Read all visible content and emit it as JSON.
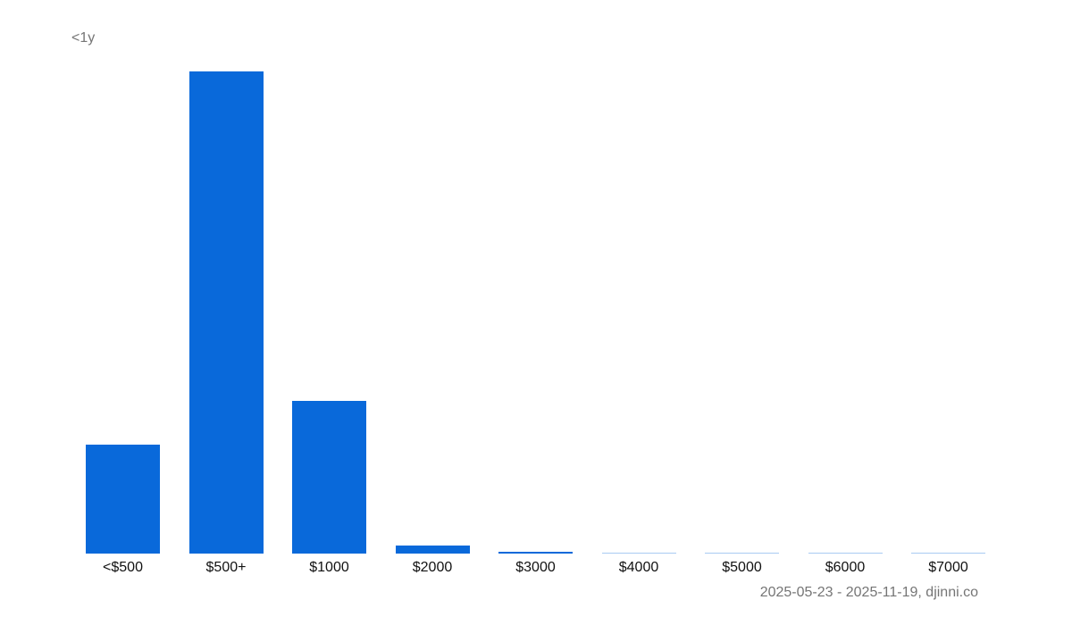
{
  "chart_data": {
    "type": "bar",
    "title": "<1y",
    "xlabel": "",
    "ylabel": "",
    "categories": [
      "<$500",
      "$500+",
      "$1000",
      "$2000",
      "$3000",
      "$4000",
      "$5000",
      "$6000",
      "$7000"
    ],
    "values": [
      113,
      500,
      158,
      8,
      2,
      1,
      1,
      1,
      0.5
    ],
    "ylim": [
      0,
      500
    ],
    "grid": false,
    "legend": null,
    "bar_color": "#0969da",
    "footer": "2025-05-23 - 2025-11-19, djinni.co"
  }
}
